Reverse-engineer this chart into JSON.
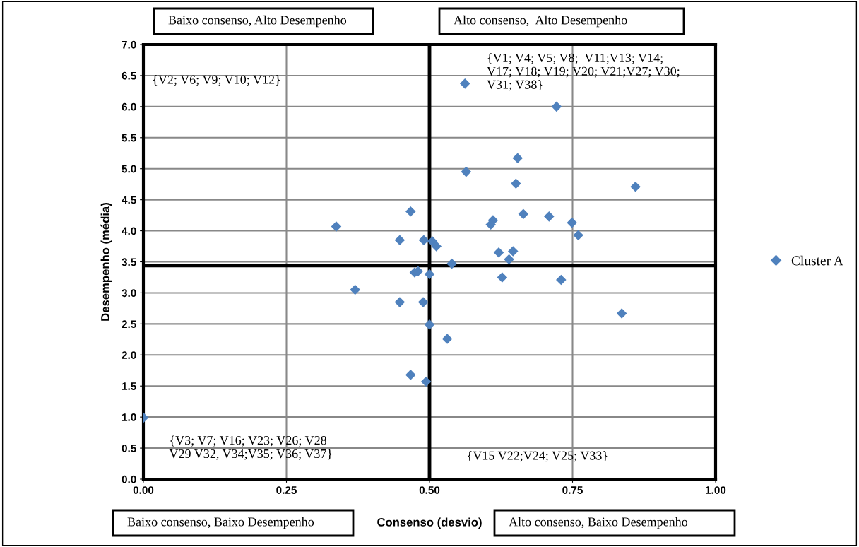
{
  "chart_data": {
    "type": "scatter",
    "xlabel": "Consenso (desvio)",
    "ylabel": "Desempenho (média)",
    "x": [
      0.562,
      0.722,
      0.654,
      0.564,
      0.651,
      0.86,
      0.337,
      0.467,
      0.448,
      0.49,
      0.505,
      0.512,
      0.611,
      0.607,
      0.664,
      0.709,
      0.749,
      0.76,
      0.621,
      0.646,
      0.639,
      0.539,
      0.474,
      0.48,
      0.5,
      0.627,
      0.73,
      0.37,
      0.448,
      0.489,
      0.5,
      0.531,
      0.467,
      0.494,
      0.836,
      0.0
    ],
    "series": [
      {
        "name": "Cluster A",
        "color": "#4f81bd",
        "values": [
          6.37,
          6.0,
          5.17,
          4.95,
          4.76,
          4.71,
          4.07,
          4.31,
          3.85,
          3.85,
          3.83,
          3.75,
          4.17,
          4.1,
          4.27,
          4.23,
          4.13,
          3.93,
          3.65,
          3.67,
          3.54,
          3.47,
          3.33,
          3.35,
          3.3,
          3.25,
          3.21,
          3.05,
          2.85,
          2.85,
          2.49,
          2.26,
          1.68,
          1.57,
          2.67,
          0.99
        ]
      }
    ],
    "marker": "diamond",
    "grid": true,
    "legend": "right",
    "xlim": [
      0,
      1
    ],
    "xticks": [
      {
        "value": 0,
        "label": "0.00"
      },
      {
        "value": 0.25,
        "label": "0.25"
      },
      {
        "value": 0.5,
        "label": "0.50"
      },
      {
        "value": 0.75,
        "label": "0.75"
      },
      {
        "value": 1,
        "label": "1.00"
      }
    ],
    "ylim": [
      0,
      7
    ],
    "yticks": [
      {
        "value": 0,
        "label": "0.0"
      },
      {
        "value": 0.5,
        "label": "0.5"
      },
      {
        "value": 1,
        "label": "1.0"
      },
      {
        "value": 1.5,
        "label": "1.5"
      },
      {
        "value": 2,
        "label": "2.0"
      },
      {
        "value": 2.5,
        "label": "2.5"
      },
      {
        "value": 3,
        "label": "3.0"
      },
      {
        "value": 3.5,
        "label": "3.5"
      },
      {
        "value": 4,
        "label": "4.0"
      },
      {
        "value": 4.5,
        "label": "4.5"
      },
      {
        "value": 5,
        "label": "5.0"
      },
      {
        "value": 5.5,
        "label": "5.5"
      },
      {
        "value": 6,
        "label": "6.0"
      },
      {
        "value": 6.5,
        "label": "6.5"
      },
      {
        "value": 7,
        "label": "7.0"
      }
    ],
    "ref_lines": [
      {
        "axis": "x",
        "value": 0.5,
        "color": "#000000"
      },
      {
        "axis": "y",
        "value": 3.44,
        "color": "#000000"
      }
    ],
    "annotations": [
      "Baixo consenso, Alto Desempenho",
      "Alto consenso,  Alto Desempenho",
      "Baixo consenso, Baixo Desempenho",
      "Alto consenso, Baixo Desempenho",
      "{V2; V6; V9; V10; V12}",
      "{V1; V4; V5; V8;  V11;V13; V14;\nV17; V18; V19; V20; V21;V27; V30;\nV31; V38}",
      "{V3; V7; V16; V23; V26; V28\nV29 V32, V34;V35; V36; V37}",
      "{V15 V22;V24; V25; V33}"
    ]
  }
}
